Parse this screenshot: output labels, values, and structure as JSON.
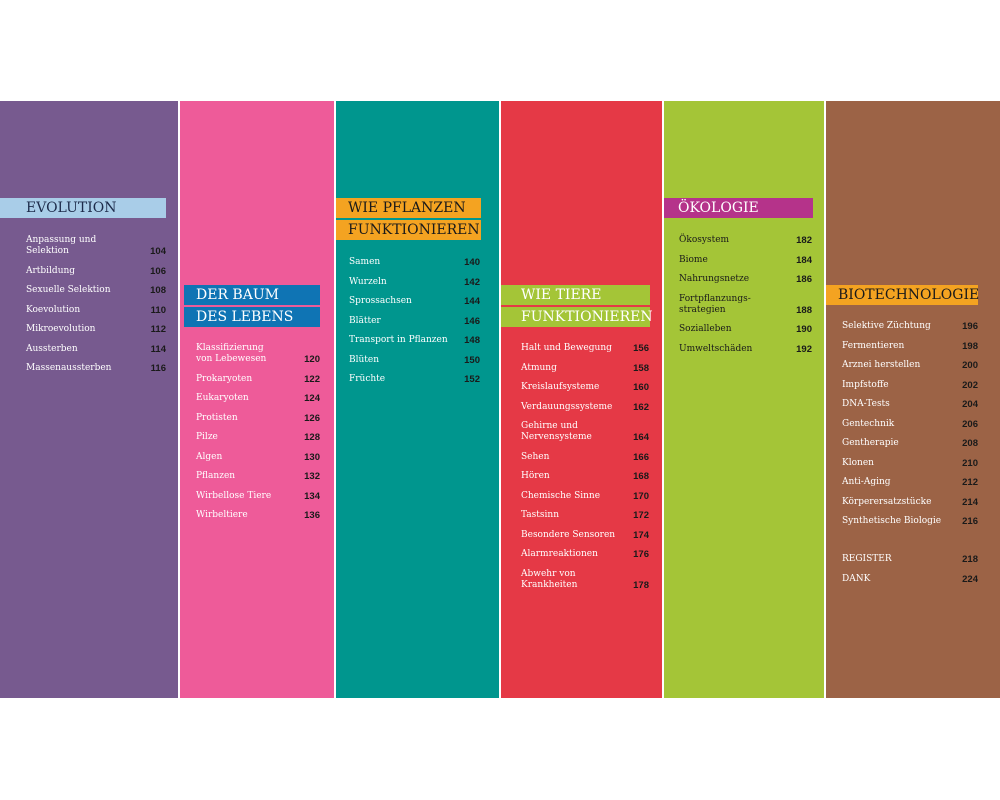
{
  "columns": [
    {
      "heading": [
        "EVOLUTION"
      ],
      "entries": [
        {
          "title": "Anpassung und Selektion",
          "page": "104"
        },
        {
          "title": "Artbildung",
          "page": "106"
        },
        {
          "title": "Sexuelle Selektion",
          "page": "108"
        },
        {
          "title": "Koevolution",
          "page": "110"
        },
        {
          "title": "Mikroevolution",
          "page": "112"
        },
        {
          "title": "Aussterben",
          "page": "114"
        },
        {
          "title": "Massenaussterben",
          "page": "116"
        }
      ]
    },
    {
      "heading": [
        "DER BAUM",
        "DES LEBENS"
      ],
      "entries": [
        {
          "title": "Klassifizierung\nvon Lebewesen",
          "page": "120"
        },
        {
          "title": "Prokaryoten",
          "page": "122"
        },
        {
          "title": "Eukaryoten",
          "page": "124"
        },
        {
          "title": "Protisten",
          "page": "126"
        },
        {
          "title": "Pilze",
          "page": "128"
        },
        {
          "title": "Algen",
          "page": "130"
        },
        {
          "title": "Pflanzen",
          "page": "132"
        },
        {
          "title": "Wirbellose Tiere",
          "page": "134"
        },
        {
          "title": "Wirbeltiere",
          "page": "136"
        }
      ]
    },
    {
      "heading": [
        "WIE PFLANZEN",
        "FUNKTIONIEREN"
      ],
      "entries": [
        {
          "title": "Samen",
          "page": "140"
        },
        {
          "title": "Wurzeln",
          "page": "142"
        },
        {
          "title": "Sprossachsen",
          "page": "144"
        },
        {
          "title": "Blätter",
          "page": "146"
        },
        {
          "title": "Transport in Pflanzen",
          "page": "148"
        },
        {
          "title": "Blüten",
          "page": "150"
        },
        {
          "title": "Früchte",
          "page": "152"
        }
      ]
    },
    {
      "heading": [
        "WIE TIERE",
        "FUNKTIONIEREN"
      ],
      "entries": [
        {
          "title": "Halt und Bewegung",
          "page": "156"
        },
        {
          "title": "Atmung",
          "page": "158"
        },
        {
          "title": "Kreislaufsysteme",
          "page": "160"
        },
        {
          "title": "Verdauungssysteme",
          "page": "162"
        },
        {
          "title": "Gehirne und\nNervensysteme",
          "page": "164"
        },
        {
          "title": "Sehen",
          "page": "166"
        },
        {
          "title": "Hören",
          "page": "168"
        },
        {
          "title": "Chemische Sinne",
          "page": "170"
        },
        {
          "title": "Tastsinn",
          "page": "172"
        },
        {
          "title": "Besondere Sensoren",
          "page": "174"
        },
        {
          "title": "Alarmreaktionen",
          "page": "176"
        },
        {
          "title": "Abwehr von\nKrankheiten",
          "page": "178"
        }
      ]
    },
    {
      "heading": [
        "ÖKOLOGIE"
      ],
      "entries": [
        {
          "title": "Ökosystem",
          "page": "182"
        },
        {
          "title": "Biome",
          "page": "184"
        },
        {
          "title": "Nahrungsnetze",
          "page": "186"
        },
        {
          "title": "Fortpflanzungs-\nstrategien",
          "page": "188"
        },
        {
          "title": "Sozialleben",
          "page": "190"
        },
        {
          "title": "Umweltschäden",
          "page": "192"
        }
      ]
    },
    {
      "heading": [
        "BIOTECHNOLOGIE"
      ],
      "entries": [
        {
          "title": "Selektive Züchtung",
          "page": "196"
        },
        {
          "title": "Fermentieren",
          "page": "198"
        },
        {
          "title": "Arznei herstellen",
          "page": "200"
        },
        {
          "title": "Impfstoffe",
          "page": "202"
        },
        {
          "title": "DNA-Tests",
          "page": "204"
        },
        {
          "title": "Gentechnik",
          "page": "206"
        },
        {
          "title": "Gentherapie",
          "page": "208"
        },
        {
          "title": "Klonen",
          "page": "210"
        },
        {
          "title": "Anti-Aging",
          "page": "212"
        },
        {
          "title": "Körperersatzstücke",
          "page": "214"
        },
        {
          "title": "Synthetische Biologie",
          "page": "216"
        }
      ],
      "extras": [
        {
          "title": "REGISTER",
          "page": "218"
        },
        {
          "title": "DANK",
          "page": "224"
        }
      ]
    }
  ]
}
